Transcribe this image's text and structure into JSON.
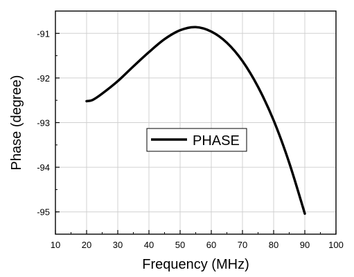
{
  "chart_data": {
    "type": "line",
    "title": "",
    "xlabel": "Frequency (MHz)",
    "ylabel": "Phase (degree)",
    "xlim": [
      10,
      100
    ],
    "ylim": [
      -95.5,
      -90.5
    ],
    "x_ticks": [
      10,
      20,
      30,
      40,
      50,
      60,
      70,
      80,
      90,
      100
    ],
    "y_ticks": [
      -95,
      -94,
      -93,
      -92,
      -91
    ],
    "x_tick_labels": [
      "10",
      "20",
      "30",
      "40",
      "50",
      "60",
      "70",
      "80",
      "90",
      "100"
    ],
    "y_tick_labels": [
      "-95",
      "-94",
      "-93",
      "-92",
      "-91"
    ],
    "grid": true,
    "legend": {
      "placement": "center-left",
      "entries": [
        "PHASE"
      ]
    },
    "series": [
      {
        "name": "PHASE",
        "color": "#000000",
        "x": [
          20,
          22,
          25,
          30,
          35,
          40,
          45,
          50,
          55,
          60,
          65,
          70,
          75,
          80,
          85,
          90
        ],
        "values": [
          -92.52,
          -92.49,
          -92.35,
          -92.07,
          -91.74,
          -91.42,
          -91.13,
          -90.93,
          -90.86,
          -90.96,
          -91.21,
          -91.62,
          -92.2,
          -92.95,
          -93.9,
          -95.04
        ]
      }
    ]
  }
}
